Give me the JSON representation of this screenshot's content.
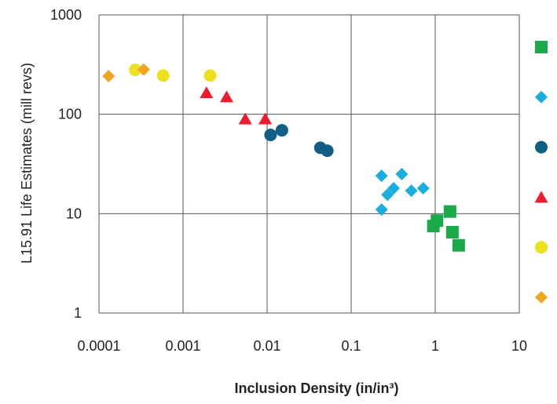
{
  "chart_data": {
    "type": "scatter",
    "title": "",
    "xlabel": "Inclusion Density (in/in³)",
    "ylabel": "L15.91 Life Estimates (mill revs)",
    "xscale": "log",
    "yscale": "log",
    "xlim": [
      0.0001,
      10
    ],
    "ylim": [
      1,
      1000
    ],
    "xticks": [
      "0.0001",
      "0.001",
      "0.01",
      "0.1",
      "1",
      "10"
    ],
    "yticks": [
      "1",
      "10",
      "100",
      "1000"
    ],
    "grid": true,
    "legend_position": "right",
    "series": [
      {
        "marker": "square",
        "color": "#1aaa4a",
        "points": [
          [
            0.95,
            7.5
          ],
          [
            1.05,
            8.5
          ],
          [
            1.5,
            10.5
          ],
          [
            1.6,
            6.5
          ],
          [
            1.9,
            4.8
          ]
        ]
      },
      {
        "marker": "diamond",
        "color": "#1aaee0",
        "points": [
          [
            0.23,
            24
          ],
          [
            0.23,
            11
          ],
          [
            0.27,
            15.5
          ],
          [
            0.32,
            18
          ],
          [
            0.4,
            25
          ],
          [
            0.52,
            17
          ],
          [
            0.72,
            18
          ]
        ]
      },
      {
        "marker": "circle",
        "color": "#125f85",
        "points": [
          [
            0.011,
            62
          ],
          [
            0.015,
            69
          ],
          [
            0.043,
            46
          ],
          [
            0.052,
            43
          ]
        ]
      },
      {
        "marker": "triangle",
        "color": "#ee1c2e",
        "points": [
          [
            0.0019,
            165
          ],
          [
            0.0033,
            150
          ],
          [
            0.0055,
            90
          ],
          [
            0.0095,
            90
          ]
        ]
      },
      {
        "marker": "circle",
        "color": "#ece11c",
        "points": [
          [
            0.00027,
            280
          ],
          [
            0.00058,
            245
          ],
          [
            0.0021,
            245
          ]
        ]
      },
      {
        "marker": "diamond",
        "color": "#eea520",
        "points": [
          [
            0.00013,
            242
          ],
          [
            0.00034,
            282
          ]
        ]
      }
    ]
  }
}
